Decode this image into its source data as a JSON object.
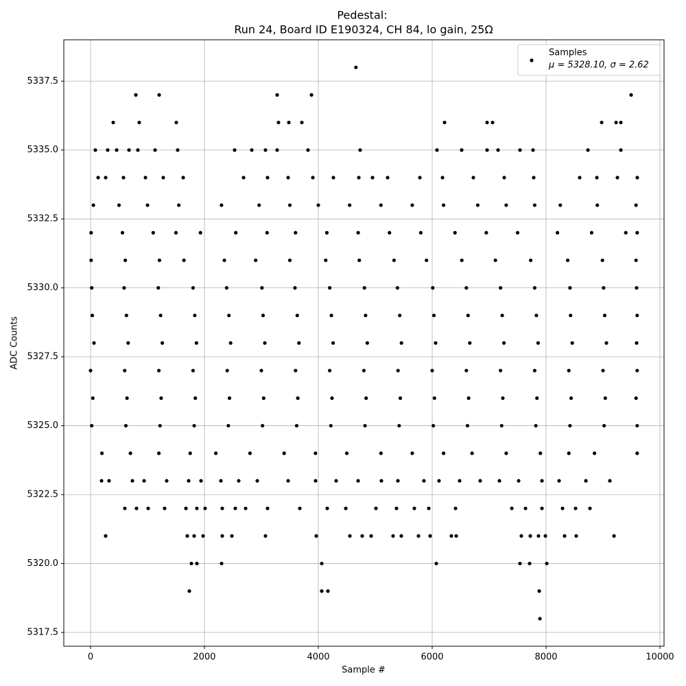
{
  "chart_data": {
    "type": "scatter",
    "title": "Pedestal:",
    "subtitle": "Run 24, Board ID E190324, CH 84, lo gain, 25Ω",
    "x_label": "Sample #",
    "y_label": "ADC Counts",
    "legend_position": "upper right",
    "legend_note": "μ = 5328.10, σ = 2.62",
    "grid": true,
    "xlim": [
      -470,
      10072
    ],
    "ylim": [
      5317,
      5339
    ],
    "xticks": [
      0,
      2000,
      4000,
      6000,
      8000,
      10000
    ],
    "yticks": [
      5317.5,
      {
        "value": 5320,
        "label": "5320.0"
      },
      5322.5,
      {
        "value": 5325,
        "label": "5325.0"
      },
      5327.5,
      {
        "value": 5330,
        "label": "5330.0"
      },
      5332.5,
      {
        "value": 5335,
        "label": "5335.0"
      },
      5337.5
    ],
    "series": [
      {
        "name": "Samples",
        "color": "#000000",
        "x": [
          10,
          610,
          1210,
          1640,
          2350,
          2900,
          3500,
          4130,
          4720,
          5330,
          5900,
          6520,
          7110,
          7730,
          8380,
          8990,
          9580,
          20,
          590,
          1190,
          1800,
          2390,
          3010,
          3590,
          4200,
          4810,
          5390,
          6010,
          6600,
          7200,
          7800,
          8420,
          9010,
          9590,
          30,
          630,
          1230,
          1830,
          2430,
          3030,
          3630,
          4230,
          4830,
          5430,
          6030,
          6630,
          7230,
          7830,
          8430,
          9030,
          9600,
          60,
          660,
          1260,
          1860,
          2460,
          3060,
          3660,
          4260,
          4860,
          5460,
          6060,
          6660,
          7260,
          7860,
          8460,
          9060,
          9590,
          0,
          600,
          1200,
          1800,
          2400,
          3000,
          3600,
          4200,
          4800,
          5400,
          6000,
          6600,
          7200,
          7800,
          8400,
          9000,
          9600,
          40,
          640,
          1240,
          1840,
          2440,
          3040,
          3640,
          4240,
          4840,
          5440,
          6040,
          6640,
          7240,
          7840,
          8440,
          9040,
          9580,
          20,
          620,
          1220,
          1820,
          2420,
          3020,
          3620,
          4220,
          4820,
          5420,
          6020,
          6620,
          7220,
          7820,
          8420,
          9020,
          9600,
          10,
          560,
          1100,
          1500,
          1930,
          2550,
          3100,
          3600,
          4150,
          4700,
          5250,
          5800,
          6400,
          6950,
          7500,
          8200,
          8800,
          9400,
          9600,
          50,
          500,
          1000,
          1550,
          2300,
          2960,
          3500,
          4000,
          4550,
          5100,
          5650,
          6200,
          6800,
          7300,
          7800,
          8250,
          8900,
          9580,
          200,
          700,
          1200,
          1750,
          2200,
          2800,
          3400,
          3950,
          4500,
          5100,
          5650,
          6200,
          6700,
          7300,
          7900,
          8400,
          8850,
          9600,
          4660,
          795,
          1205,
          3277,
          3880,
          9494,
          398,
          855,
          1506,
          3301,
          3482,
          3711,
          6217,
          6964,
          7060,
          8976,
          9229,
          9313,
          84,
          301,
          458,
          675,
          831,
          1133,
          1530,
          2530,
          2831,
          3072,
          3277,
          3819,
          4735,
          6084,
          6518,
          6964,
          7157,
          7542,
          7771,
          8735,
          9313,
          133,
          265,
          578,
          964,
          1277,
          1627,
          2687,
          3108,
          3470,
          3904,
          4265,
          4711,
          4952,
          5217,
          5783,
          6181,
          6723,
          7265,
          7783,
          8590,
          8892,
          9253,
          9602,
          193,
          325,
          735,
          940,
          1337,
          1723,
          1940,
          2289,
          2602,
          2928,
          3470,
          3952,
          4313,
          4699,
          5108,
          5398,
          5855,
          6120,
          6482,
          6843,
          7181,
          7518,
          7928,
          8229,
          8699,
          9120,
          602,
          807,
          1012,
          1301,
          1675,
          1867,
          2012,
          2313,
          2542,
          2723,
          3108,
          3675,
          4157,
          4482,
          5012,
          5373,
          5687,
          5940,
          6410,
          7398,
          7639,
          7928,
          8289,
          8518,
          8771,
          265,
          1699,
          1819,
          1976,
          2313,
          2482,
          3072,
          3964,
          4554,
          4771,
          4928,
          5313,
          5458,
          5759,
          5964,
          6337,
          6422,
          7566,
          7723,
          7867,
          7988,
          8325,
          8530,
          9193,
          1771,
          1867,
          2301,
          4060,
          6072,
          7542,
          7711,
          8012,
          1735,
          4060,
          4169,
          7880,
          7892
        ],
        "values": [
          5331,
          5331,
          5331,
          5331,
          5331,
          5331,
          5331,
          5331,
          5331,
          5331,
          5331,
          5331,
          5331,
          5331,
          5331,
          5331,
          5331,
          5330,
          5330,
          5330,
          5330,
          5330,
          5330,
          5330,
          5330,
          5330,
          5330,
          5330,
          5330,
          5330,
          5330,
          5330,
          5330,
          5330,
          5329,
          5329,
          5329,
          5329,
          5329,
          5329,
          5329,
          5329,
          5329,
          5329,
          5329,
          5329,
          5329,
          5329,
          5329,
          5329,
          5329,
          5328,
          5328,
          5328,
          5328,
          5328,
          5328,
          5328,
          5328,
          5328,
          5328,
          5328,
          5328,
          5328,
          5328,
          5328,
          5328,
          5328,
          5327,
          5327,
          5327,
          5327,
          5327,
          5327,
          5327,
          5327,
          5327,
          5327,
          5327,
          5327,
          5327,
          5327,
          5327,
          5327,
          5327,
          5326,
          5326,
          5326,
          5326,
          5326,
          5326,
          5326,
          5326,
          5326,
          5326,
          5326,
          5326,
          5326,
          5326,
          5326,
          5326,
          5326,
          5325,
          5325,
          5325,
          5325,
          5325,
          5325,
          5325,
          5325,
          5325,
          5325,
          5325,
          5325,
          5325,
          5325,
          5325,
          5325,
          5325,
          5332,
          5332,
          5332,
          5332,
          5332,
          5332,
          5332,
          5332,
          5332,
          5332,
          5332,
          5332,
          5332,
          5332,
          5332,
          5332,
          5332,
          5332,
          5332,
          5333,
          5333,
          5333,
          5333,
          5333,
          5333,
          5333,
          5333,
          5333,
          5333,
          5333,
          5333,
          5333,
          5333,
          5333,
          5333,
          5333,
          5333,
          5324,
          5324,
          5324,
          5324,
          5324,
          5324,
          5324,
          5324,
          5324,
          5324,
          5324,
          5324,
          5324,
          5324,
          5324,
          5324,
          5324,
          5324,
          5338,
          5337,
          5337,
          5337,
          5337,
          5337,
          5336,
          5336,
          5336,
          5336,
          5336,
          5336,
          5336,
          5336,
          5336,
          5336,
          5336,
          5336,
          5335,
          5335,
          5335,
          5335,
          5335,
          5335,
          5335,
          5335,
          5335,
          5335,
          5335,
          5335,
          5335,
          5335,
          5335,
          5335,
          5335,
          5335,
          5335,
          5335,
          5335,
          5334,
          5334,
          5334,
          5334,
          5334,
          5334,
          5334,
          5334,
          5334,
          5334,
          5334,
          5334,
          5334,
          5334,
          5334,
          5334,
          5334,
          5334,
          5334,
          5334,
          5334,
          5334,
          5334,
          5323,
          5323,
          5323,
          5323,
          5323,
          5323,
          5323,
          5323,
          5323,
          5323,
          5323,
          5323,
          5323,
          5323,
          5323,
          5323,
          5323,
          5323,
          5323,
          5323,
          5323,
          5323,
          5323,
          5323,
          5323,
          5323,
          5322,
          5322,
          5322,
          5322,
          5322,
          5322,
          5322,
          5322,
          5322,
          5322,
          5322,
          5322,
          5322,
          5322,
          5322,
          5322,
          5322,
          5322,
          5322,
          5322,
          5322,
          5322,
          5322,
          5322,
          5322,
          5321,
          5321,
          5321,
          5321,
          5321,
          5321,
          5321,
          5321,
          5321,
          5321,
          5321,
          5321,
          5321,
          5321,
          5321,
          5321,
          5321,
          5321,
          5321,
          5321,
          5321,
          5321,
          5321,
          5321,
          5320,
          5320,
          5320,
          5320,
          5320,
          5320,
          5320,
          5320,
          5319,
          5319,
          5319,
          5319,
          5318
        ]
      }
    ]
  }
}
